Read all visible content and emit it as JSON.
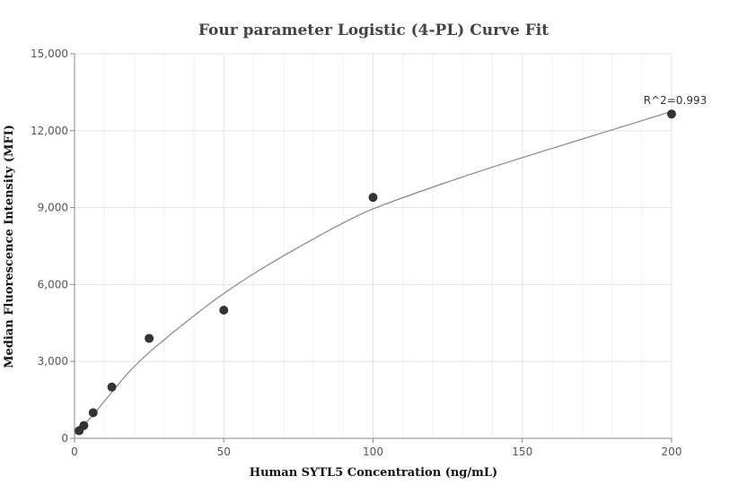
{
  "chart_data": {
    "type": "scatter",
    "title": "Four parameter Logistic (4-PL) Curve Fit",
    "xlabel": "Human SYTL5 Concentration (ng/mL)",
    "ylabel": "Median Fluorescence Intensity (MFI)",
    "xlim": [
      0,
      200
    ],
    "ylim": [
      0,
      15000
    ],
    "x_ticks": [
      {
        "value": 0,
        "label": "0"
      },
      {
        "value": 50,
        "label": "50"
      },
      {
        "value": 100,
        "label": "100"
      },
      {
        "value": 150,
        "label": "150"
      },
      {
        "value": 200,
        "label": "200"
      }
    ],
    "y_ticks": [
      {
        "value": 0,
        "label": "0"
      },
      {
        "value": 3000,
        "label": "3,000"
      },
      {
        "value": 6000,
        "label": "6,000"
      },
      {
        "value": 9000,
        "label": "9,000"
      },
      {
        "value": 12000,
        "label": "12,000"
      },
      {
        "value": 15000,
        "label": "15,000"
      }
    ],
    "grid": true,
    "series": [
      {
        "kind": "points",
        "x": [
          1.5625,
          3.125,
          6.25,
          12.5,
          25,
          50,
          100,
          200
        ],
        "y": [
          300,
          500,
          1000,
          2000,
          3900,
          5000,
          9400,
          12650
        ]
      },
      {
        "kind": "fit-curve",
        "x": [
          0,
          1.5625,
          3.125,
          6.25,
          12.5,
          18.75,
          25,
          37.5,
          50,
          62.5,
          75,
          87.5,
          100,
          125,
          150,
          175,
          200
        ],
        "y": [
          150,
          340,
          540,
          920,
          1800,
          2650,
          3350,
          4550,
          5650,
          6600,
          7450,
          8250,
          8950,
          10000,
          10950,
          11850,
          12750
        ]
      }
    ],
    "annotations": [
      {
        "text": "R^2=0.993",
        "x": 200,
        "y": 12650
      }
    ],
    "colors": {
      "points": "#333333",
      "curve": "#888888",
      "grid": "#e3e3ea"
    }
  }
}
